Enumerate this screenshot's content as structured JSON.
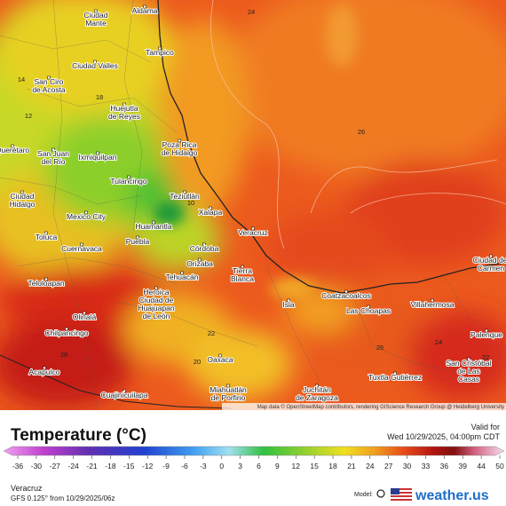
{
  "map": {
    "labels": [
      {
        "lines": [
          "Aldama"
        ]
      },
      {
        "lines": [
          "Ciudad",
          "Mante"
        ]
      },
      {
        "lines": [
          "Tampico"
        ]
      },
      {
        "lines": [
          "Ciudad Valles"
        ]
      },
      {
        "lines": [
          "San Ciro",
          "de Acosta"
        ]
      },
      {
        "lines": [
          "Huejutla",
          "de Reyes"
        ]
      },
      {
        "lines": [
          "Querétaro"
        ]
      },
      {
        "lines": [
          "San Juan",
          "del Río"
        ]
      },
      {
        "lines": [
          "Ixmiquilpan"
        ]
      },
      {
        "lines": [
          "Poza Rica",
          "de Hidalgo"
        ]
      },
      {
        "lines": [
          "Tulancingo"
        ]
      },
      {
        "lines": [
          "Teziutlán"
        ]
      },
      {
        "lines": [
          "Xalapa"
        ]
      },
      {
        "lines": [
          "Ciudad",
          "Hidalgo"
        ]
      },
      {
        "lines": [
          "Mexico City"
        ]
      },
      {
        "lines": [
          "Huamantla"
        ]
      },
      {
        "lines": [
          "Toluca"
        ]
      },
      {
        "lines": [
          "Puebla"
        ]
      },
      {
        "lines": [
          "Cuernavaca"
        ]
      },
      {
        "lines": [
          "Veracruz"
        ]
      },
      {
        "lines": [
          "Córdoba"
        ]
      },
      {
        "lines": [
          "Orizaba"
        ]
      },
      {
        "lines": [
          "Tehuacán"
        ]
      },
      {
        "lines": [
          "Tierra",
          "Blanca"
        ]
      },
      {
        "lines": [
          "Teloloapan"
        ]
      },
      {
        "lines": [
          "Coatzacoalcos"
        ]
      },
      {
        "lines": [
          "Las Choapas"
        ]
      },
      {
        "lines": [
          "Villahermosa"
        ]
      },
      {
        "lines": [
          "Ciudad del",
          "Carmen"
        ]
      },
      {
        "lines": [
          "Heroica",
          "Ciudad de",
          "Huajuapan",
          "de León"
        ]
      },
      {
        "lines": [
          "Isla"
        ]
      },
      {
        "lines": [
          "Olinalá"
        ]
      },
      {
        "lines": [
          "Chilpancingo"
        ]
      },
      {
        "lines": [
          "Palenque"
        ]
      },
      {
        "lines": [
          "Oaxaca"
        ]
      },
      {
        "lines": [
          "Acapulco"
        ]
      },
      {
        "lines": [
          "San Cristóbal",
          "de Las",
          "Casas"
        ]
      },
      {
        "lines": [
          "Tuxtla Gutiérrez"
        ]
      },
      {
        "lines": [
          "Juchitán",
          "de Zaragoza"
        ]
      },
      {
        "lines": [
          "Miahuatlán",
          "de Porfirio"
        ]
      },
      {
        "lines": [
          "Cuajinicuilapa"
        ]
      }
    ],
    "contour_labels": [
      "24",
      "26",
      "10",
      "14",
      "12",
      "18",
      "22",
      "20",
      "26",
      "24",
      "22",
      "28"
    ],
    "attribution": "Map data © OpenStreetMap contributors, rendering GIScience Research Group @ Heidelberg University"
  },
  "legend": {
    "title": "Temperature (°C)",
    "valid_label": "Valid for",
    "valid_time": "Wed 10/29/2025, 04:00pm CDT",
    "ticks": [
      "-36",
      "-30",
      "-27",
      "-24",
      "-21",
      "-18",
      "-15",
      "-12",
      "-9",
      "-6",
      "-3",
      "0",
      "3",
      "6",
      "9",
      "12",
      "15",
      "18",
      "21",
      "24",
      "27",
      "30",
      "33",
      "36",
      "39",
      "44",
      "50"
    ]
  },
  "footer": {
    "location": "Veracruz",
    "model_run": "GFS 0.125° from  10/29/2025/06z",
    "model_label": "Model:",
    "brand": "weather.us"
  }
}
